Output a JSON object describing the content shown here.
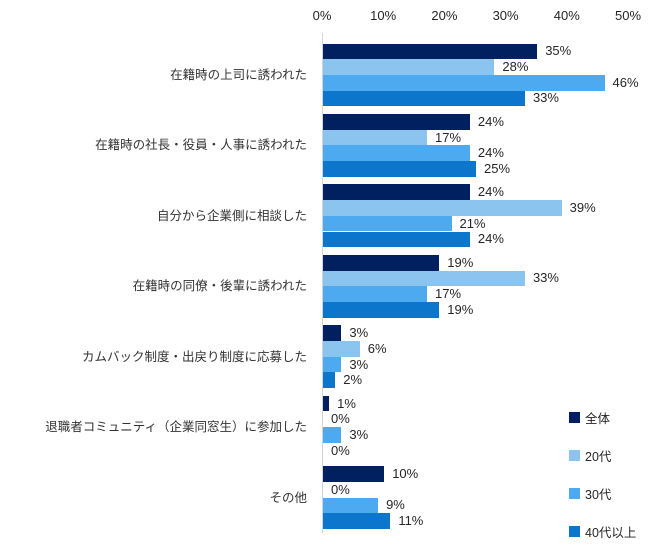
{
  "chart_data": {
    "type": "bar",
    "orientation": "horizontal",
    "title": "",
    "categories": [
      "在籍時の上司に誘われた",
      "在籍時の社長・役員・人事に誘われた",
      "自分から企業側に相談した",
      "在籍時の同僚・後輩に誘われた",
      "カムバック制度・出戻り制度に応募した",
      "退職者コミュニティ（企業同窓生）に参加した",
      "その他"
    ],
    "series": [
      {
        "name": "全体",
        "color": "#002060",
        "values": [
          35,
          24,
          24,
          19,
          3,
          1,
          10
        ]
      },
      {
        "name": "20代",
        "color": "#8CC4F0",
        "values": [
          28,
          17,
          39,
          33,
          6,
          0,
          0
        ]
      },
      {
        "name": "30代",
        "color": "#4DAAF0",
        "values": [
          46,
          24,
          21,
          17,
          3,
          3,
          9
        ]
      },
      {
        "name": "40代以上",
        "color": "#0C76CC",
        "values": [
          33,
          25,
          24,
          19,
          2,
          0,
          11
        ]
      }
    ],
    "x_axis": {
      "ticks": [
        "0%",
        "10%",
        "20%",
        "30%",
        "40%",
        "50%"
      ],
      "min": 0,
      "max": 50
    },
    "value_label_suffix": "%",
    "legend_position": "bottom-right",
    "grid": false,
    "axis_line_color": "#d4d4d4",
    "text_color": "#262626"
  }
}
